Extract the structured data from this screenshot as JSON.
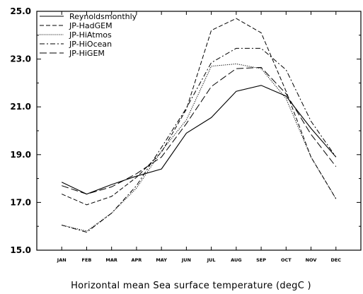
{
  "chart_data": {
    "type": "line",
    "title": "",
    "xlabel": "Horizontal mean Sea surface temperature (degC )",
    "ylabel": "",
    "categories": [
      "JAN",
      "FEB",
      "MAR",
      "APR",
      "MAY",
      "JUN",
      "JUL",
      "AUG",
      "SEP",
      "OCT",
      "NOV",
      "DEC"
    ],
    "yticks": [
      "15.0",
      "17.0",
      "19.0",
      "21.0",
      "23.0",
      "25.0"
    ],
    "ylim": [
      15.0,
      25.0
    ],
    "grid": false,
    "legend_position": "top-left",
    "series": [
      {
        "name": "Reynoldsmonthly",
        "style": "solid",
        "values": [
          17.85,
          17.35,
          17.75,
          18.1,
          18.4,
          19.9,
          20.55,
          21.65,
          21.9,
          21.45,
          20.1,
          18.9
        ]
      },
      {
        "name": "JP-HadGEM",
        "style": "dashed",
        "values": [
          17.35,
          16.9,
          17.25,
          18.05,
          19.1,
          20.9,
          24.2,
          24.7,
          24.1,
          21.65,
          18.9,
          17.15
        ]
      },
      {
        "name": "JP-HiAtmos",
        "style": "dotted",
        "values": [
          16.05,
          15.8,
          16.55,
          17.6,
          19.15,
          20.45,
          22.7,
          22.8,
          22.6,
          21.35,
          18.9,
          17.15
        ]
      },
      {
        "name": "JP-HiOcean",
        "style": "dashdot",
        "values": [
          16.05,
          15.75,
          16.55,
          17.7,
          19.3,
          20.95,
          22.85,
          23.45,
          23.45,
          22.55,
          20.4,
          18.9
        ]
      },
      {
        "name": "JP-HiGEM",
        "style": "longdash",
        "values": [
          17.7,
          17.35,
          17.65,
          18.2,
          18.9,
          20.3,
          21.85,
          22.6,
          22.65,
          21.55,
          19.85,
          18.5
        ]
      }
    ]
  }
}
